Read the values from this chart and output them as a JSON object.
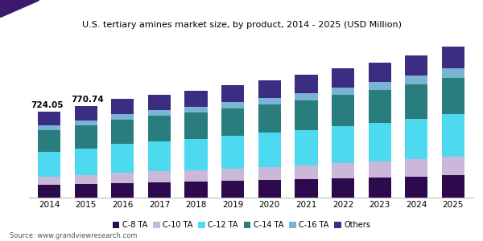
{
  "title": "U.S. tertiary amines market size, by product, 2014 - 2025 (USD Million)",
  "years": [
    2014,
    2015,
    2016,
    2017,
    2018,
    2019,
    2020,
    2021,
    2022,
    2023,
    2024,
    2025
  ],
  "categories": [
    "C-8 TA",
    "C-10 TA",
    "C-12 TA",
    "C-14 TA",
    "C-16 TA",
    "Others"
  ],
  "colors": [
    "#2d0a4e",
    "#c9b8d8",
    "#4dd9f0",
    "#2a7d7d",
    "#7ab3d4",
    "#3b2d82"
  ],
  "data": {
    "C-8 TA": [
      105,
      115,
      122,
      128,
      133,
      140,
      148,
      155,
      163,
      170,
      178,
      188
    ],
    "C-10 TA": [
      68,
      75,
      88,
      92,
      97,
      103,
      110,
      118,
      127,
      137,
      145,
      155
    ],
    "C-12 TA": [
      210,
      222,
      240,
      252,
      262,
      275,
      288,
      298,
      312,
      322,
      338,
      360
    ],
    "C-14 TA": [
      185,
      195,
      205,
      215,
      222,
      230,
      238,
      248,
      262,
      275,
      290,
      308
    ],
    "C-16 TA": [
      38,
      42,
      47,
      50,
      52,
      55,
      58,
      62,
      65,
      70,
      74,
      79
    ],
    "Others": [
      118,
      122,
      128,
      132,
      136,
      142,
      147,
      152,
      157,
      163,
      170,
      180
    ]
  },
  "totals_2014": "724.05",
  "totals_2015": "770.74",
  "source": "Source: www.grandviewresearch.com",
  "ylim": [
    0,
    1380
  ],
  "bg_color": "#ffffff",
  "header_bar_color": "#6b3fa0",
  "triangle_color": "#3b1a6e"
}
